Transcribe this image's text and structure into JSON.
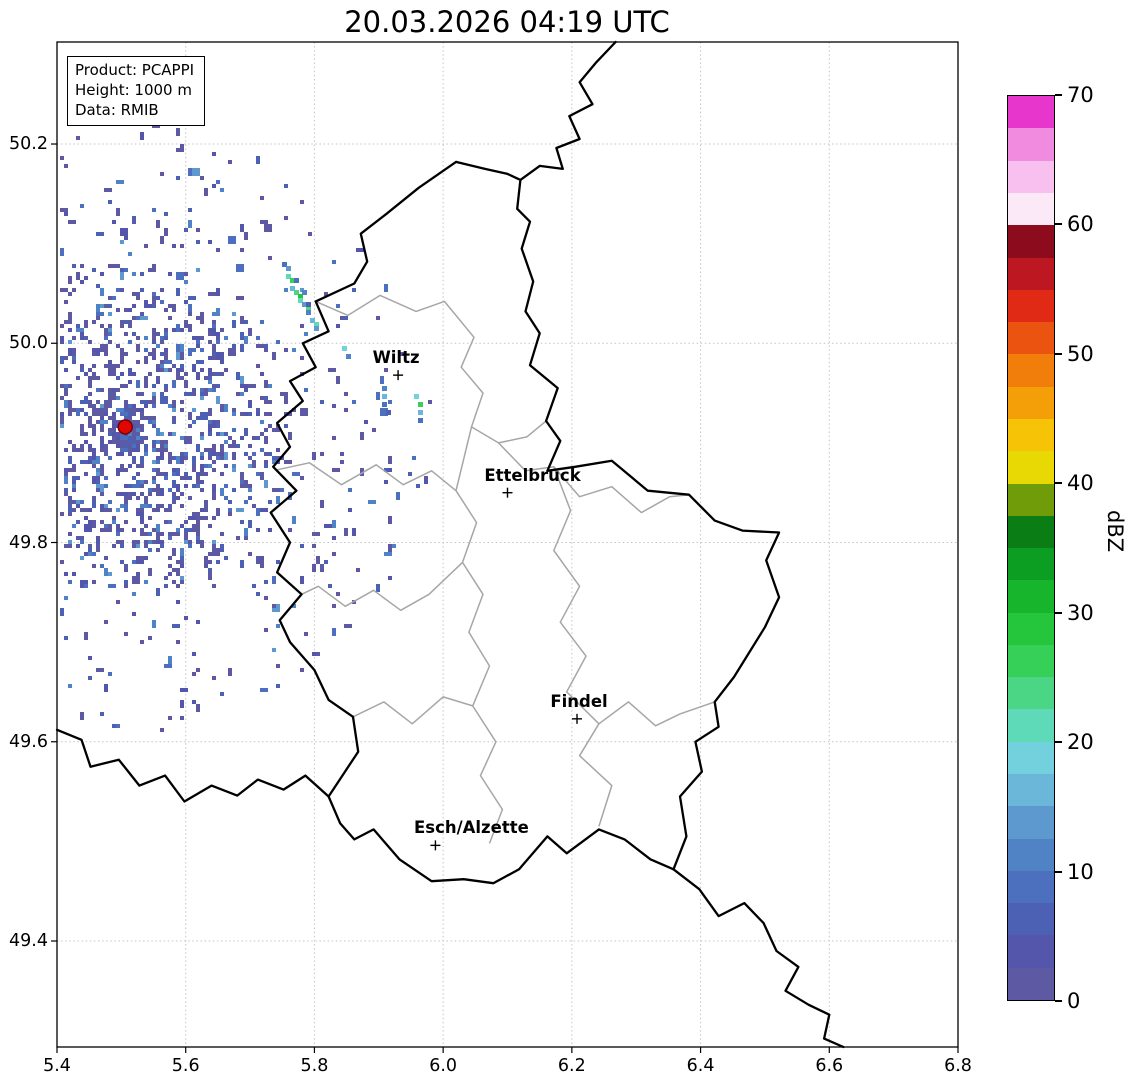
{
  "title": "20.03.2026 04:19 UTC",
  "info_box": {
    "lines": [
      "Product: PCAPPI",
      "Height: 1000 m",
      "Data: RMIB"
    ]
  },
  "axes": {
    "lon_range": [
      5.4,
      6.8
    ],
    "lat_range": [
      49.2936,
      50.3024
    ],
    "x_tick_values": [
      5.4,
      5.6,
      5.8,
      6.0,
      6.2,
      6.4,
      6.6,
      6.8
    ],
    "x_tick_labels": [
      "5.4",
      "5.6",
      "5.8",
      "6.0",
      "6.2",
      "6.4",
      "6.6",
      "6.8"
    ],
    "y_tick_values": [
      50.2,
      50.0,
      49.8,
      49.6,
      49.4
    ],
    "y_tick_labels": [
      "50.2",
      "50.0",
      "49.8",
      "49.6",
      "49.4"
    ],
    "grid_color": "#c4c4c4"
  },
  "colorbar": {
    "label": "dBZ",
    "min": 0,
    "max": 70,
    "step_dbz": 2.5,
    "tick_values": [
      0,
      10,
      20,
      30,
      40,
      50,
      60,
      70
    ],
    "tick_labels": [
      "0",
      "10",
      "20",
      "30",
      "40",
      "50",
      "60",
      "70"
    ],
    "colors": [
      "#5d59a3",
      "#5356ab",
      "#4d61b4",
      "#4c70bd",
      "#5083c6",
      "#5d99cf",
      "#6ab7da",
      "#72d1dd",
      "#5fdab8",
      "#4ad684",
      "#36d058",
      "#25c63c",
      "#16b52c",
      "#0c9e22",
      "#0b7d15",
      "#6f9c08",
      "#e8d905",
      "#f6c306",
      "#f59f08",
      "#f17d0b",
      "#ea5410",
      "#e02a16",
      "#bd1722",
      "#8c0c1d",
      "#fce9f7",
      "#f8c0ee",
      "#f18be0",
      "#e636cb"
    ]
  },
  "map": {
    "border_color": "#000000",
    "region_border_color": "#a6a6a6",
    "cities": [
      {
        "name": "Wiltz",
        "lon": 5.93,
        "lat": 49.968,
        "label_dx": -2
      },
      {
        "name": "Ettelbruck",
        "lon": 6.1,
        "lat": 49.85,
        "label_dx": 25
      },
      {
        "name": "Findel",
        "lon": 6.208,
        "lat": 49.623,
        "label_dx": 2
      },
      {
        "name": "Esch/Alzette",
        "lon": 5.988,
        "lat": 49.496,
        "label_dx": 36
      }
    ],
    "radar_site": {
      "lon": 5.506,
      "lat": 49.916,
      "dot_color": "#e10600",
      "edge_color": "#7a0000"
    },
    "country_borders": [
      [
        [
          6.02,
          50.182
        ],
        [
          6.065,
          50.175
        ],
        [
          6.1,
          50.17
        ],
        [
          6.12,
          50.164
        ],
        [
          6.115,
          50.135
        ],
        [
          6.135,
          50.122
        ],
        [
          6.122,
          50.095
        ],
        [
          6.14,
          50.062
        ],
        [
          6.128,
          50.032
        ],
        [
          6.15,
          50.01
        ],
        [
          6.135,
          49.978
        ],
        [
          6.178,
          49.955
        ],
        [
          6.16,
          49.922
        ],
        [
          6.182,
          49.902
        ],
        [
          6.162,
          49.872
        ],
        [
          6.205,
          49.876
        ],
        [
          6.262,
          49.882
        ],
        [
          6.318,
          49.852
        ],
        [
          6.382,
          49.848
        ],
        [
          6.422,
          49.822
        ],
        [
          6.465,
          49.812
        ],
        [
          6.522,
          49.81
        ],
        [
          6.502,
          49.782
        ],
        [
          6.522,
          49.745
        ],
        [
          6.5,
          49.715
        ],
        [
          6.452,
          49.665
        ],
        [
          6.422,
          49.64
        ],
        [
          6.428,
          49.615
        ],
        [
          6.392,
          49.6
        ],
        [
          6.402,
          49.57
        ],
        [
          6.368,
          49.545
        ],
        [
          6.378,
          49.505
        ],
        [
          6.358,
          49.472
        ],
        [
          6.322,
          49.482
        ],
        [
          6.282,
          49.502
        ],
        [
          6.242,
          49.512
        ],
        [
          6.192,
          49.488
        ],
        [
          6.162,
          49.505
        ],
        [
          6.118,
          49.472
        ],
        [
          6.078,
          49.458
        ],
        [
          6.032,
          49.462
        ],
        [
          5.982,
          49.46
        ],
        [
          5.932,
          49.482
        ],
        [
          5.892,
          49.512
        ],
        [
          5.862,
          49.502
        ],
        [
          5.84,
          49.518
        ],
        [
          5.822,
          49.545
        ],
        [
          5.868,
          49.59
        ],
        [
          5.86,
          49.625
        ],
        [
          5.822,
          49.642
        ],
        [
          5.8,
          49.672
        ],
        [
          5.762,
          49.7
        ],
        [
          5.746,
          49.722
        ],
        [
          5.78,
          49.748
        ],
        [
          5.742,
          49.77
        ],
        [
          5.762,
          49.8
        ],
        [
          5.732,
          49.83
        ],
        [
          5.772,
          49.852
        ],
        [
          5.736,
          49.876
        ],
        [
          5.762,
          49.896
        ],
        [
          5.742,
          49.92
        ],
        [
          5.782,
          49.942
        ],
        [
          5.762,
          49.962
        ],
        [
          5.802,
          49.976
        ],
        [
          5.782,
          50.0
        ],
        [
          5.822,
          50.012
        ],
        [
          5.802,
          50.042
        ],
        [
          5.862,
          50.06
        ],
        [
          5.882,
          50.082
        ],
        [
          5.872,
          50.11
        ],
        [
          5.912,
          50.13
        ],
        [
          5.962,
          50.156
        ],
        [
          6.02,
          50.182
        ]
      ],
      [
        [
          6.268,
          50.3024
        ],
        [
          6.238,
          50.282
        ],
        [
          6.212,
          50.262
        ],
        [
          6.232,
          50.24
        ],
        [
          6.196,
          50.228
        ],
        [
          6.212,
          50.205
        ],
        [
          6.176,
          50.196
        ],
        [
          6.186,
          50.175
        ],
        [
          6.15,
          50.178
        ],
        [
          6.12,
          50.164
        ]
      ],
      [
        [
          5.4,
          49.612
        ],
        [
          5.438,
          49.602
        ],
        [
          5.452,
          49.575
        ],
        [
          5.496,
          49.582
        ],
        [
          5.528,
          49.556
        ],
        [
          5.568,
          49.566
        ],
        [
          5.598,
          49.54
        ],
        [
          5.64,
          49.556
        ],
        [
          5.68,
          49.546
        ],
        [
          5.712,
          49.562
        ],
        [
          5.752,
          49.552
        ],
        [
          5.786,
          49.566
        ],
        [
          5.822,
          49.545
        ]
      ],
      [
        [
          6.358,
          49.472
        ],
        [
          6.398,
          49.452
        ],
        [
          6.428,
          49.425
        ],
        [
          6.468,
          49.438
        ],
        [
          6.498,
          49.418
        ],
        [
          6.518,
          49.39
        ],
        [
          6.552,
          49.374
        ],
        [
          6.532,
          49.35
        ],
        [
          6.568,
          49.336
        ],
        [
          6.6,
          49.326
        ],
        [
          6.592,
          49.302
        ],
        [
          6.622,
          49.2936
        ]
      ]
    ],
    "region_borders": [
      [
        [
          5.802,
          50.042
        ],
        [
          5.852,
          50.028
        ],
        [
          5.902,
          50.048
        ],
        [
          5.958,
          50.032
        ],
        [
          6.002,
          50.042
        ],
        [
          6.048,
          50.006
        ],
        [
          6.028,
          49.976
        ],
        [
          6.062,
          49.95
        ],
        [
          6.044,
          49.916
        ],
        [
          6.086,
          49.9
        ],
        [
          6.13,
          49.906
        ],
        [
          6.16,
          49.922
        ]
      ],
      [
        [
          5.742,
          49.873
        ],
        [
          5.792,
          49.88
        ],
        [
          5.842,
          49.858
        ],
        [
          5.896,
          49.878
        ],
        [
          5.938,
          49.858
        ],
        [
          5.982,
          49.872
        ],
        [
          6.02,
          49.852
        ],
        [
          6.044,
          49.916
        ]
      ],
      [
        [
          6.02,
          49.852
        ],
        [
          6.052,
          49.82
        ],
        [
          6.03,
          49.78
        ],
        [
          6.062,
          49.748
        ],
        [
          6.04,
          49.71
        ],
        [
          6.072,
          49.676
        ],
        [
          6.046,
          49.636
        ],
        [
          6.082,
          49.6
        ],
        [
          6.058,
          49.566
        ],
        [
          6.092,
          49.532
        ],
        [
          6.072,
          49.498
        ]
      ],
      [
        [
          6.086,
          49.9
        ],
        [
          6.128,
          49.872
        ],
        [
          6.172,
          49.876
        ],
        [
          6.212,
          49.846
        ],
        [
          6.262,
          49.856
        ],
        [
          6.308,
          49.83
        ],
        [
          6.352,
          49.846
        ],
        [
          6.382,
          49.848
        ]
      ],
      [
        [
          6.172,
          49.876
        ],
        [
          6.198,
          49.832
        ],
        [
          6.172,
          49.792
        ],
        [
          6.212,
          49.756
        ],
        [
          6.182,
          49.72
        ],
        [
          6.222,
          49.686
        ],
        [
          6.192,
          49.65
        ],
        [
          6.242,
          49.618
        ],
        [
          6.212,
          49.586
        ],
        [
          6.262,
          49.556
        ],
        [
          6.242,
          49.515
        ]
      ],
      [
        [
          5.86,
          49.625
        ],
        [
          5.908,
          49.64
        ],
        [
          5.952,
          49.618
        ],
        [
          6.0,
          49.645
        ],
        [
          6.046,
          49.636
        ]
      ],
      [
        [
          6.242,
          49.618
        ],
        [
          6.288,
          49.64
        ],
        [
          6.33,
          49.616
        ],
        [
          6.368,
          49.628
        ],
        [
          6.422,
          49.64
        ]
      ],
      [
        [
          5.78,
          49.748
        ],
        [
          5.806,
          49.756
        ],
        [
          5.848,
          49.736
        ],
        [
          5.892,
          49.752
        ],
        [
          5.934,
          49.732
        ],
        [
          5.978,
          49.748
        ],
        [
          6.03,
          49.78
        ]
      ]
    ]
  },
  "chart_data": {
    "type": "heatmap",
    "title": "20.03.2026 04:19 UTC",
    "units": "dBZ",
    "value_range": [
      0,
      70
    ],
    "lon_range": [
      5.4,
      6.8
    ],
    "lat_range": [
      49.2936,
      50.3024
    ],
    "legend_position": "right-colorbar",
    "grid": "dotted",
    "radar_site": {
      "lon": 5.506,
      "lat": 49.916
    },
    "clutter_field": {
      "description": "speckled low-intensity ground clutter centered on radar site",
      "center_lon": 5.506,
      "center_lat": 49.916,
      "radius_px": 305,
      "count": 1700,
      "dbz_range": [
        0,
        14
      ],
      "seed": 1337
    },
    "echo_cells": [
      [
        5.752,
        50.08,
        9
      ],
      [
        5.756,
        50.074,
        13
      ],
      [
        5.76,
        50.068,
        21
      ],
      [
        5.764,
        50.062,
        26
      ],
      [
        5.768,
        50.057,
        17
      ],
      [
        5.772,
        50.052,
        23
      ],
      [
        5.776,
        50.047,
        29
      ],
      [
        5.78,
        50.043,
        20
      ],
      [
        5.784,
        50.038,
        14
      ],
      [
        5.788,
        50.034,
        23
      ],
      [
        5.792,
        50.03,
        11
      ],
      [
        5.796,
        50.025,
        17
      ],
      [
        5.8,
        50.02,
        21
      ],
      [
        5.804,
        50.015,
        13
      ],
      [
        5.77,
        50.063,
        8
      ],
      [
        5.782,
        50.05,
        10
      ],
      [
        5.79,
        50.041,
        7
      ],
      [
        5.845,
        49.994,
        18
      ],
      [
        5.85,
        49.988,
        10
      ],
      [
        5.91,
        49.956,
        11
      ],
      [
        5.91,
        49.948,
        15
      ],
      [
        5.911,
        49.94,
        9
      ],
      [
        5.912,
        49.932,
        7
      ],
      [
        5.96,
        49.947,
        19
      ],
      [
        5.961,
        49.939,
        25
      ],
      [
        5.961,
        49.931,
        16
      ],
      [
        5.962,
        49.923,
        9
      ]
    ]
  }
}
